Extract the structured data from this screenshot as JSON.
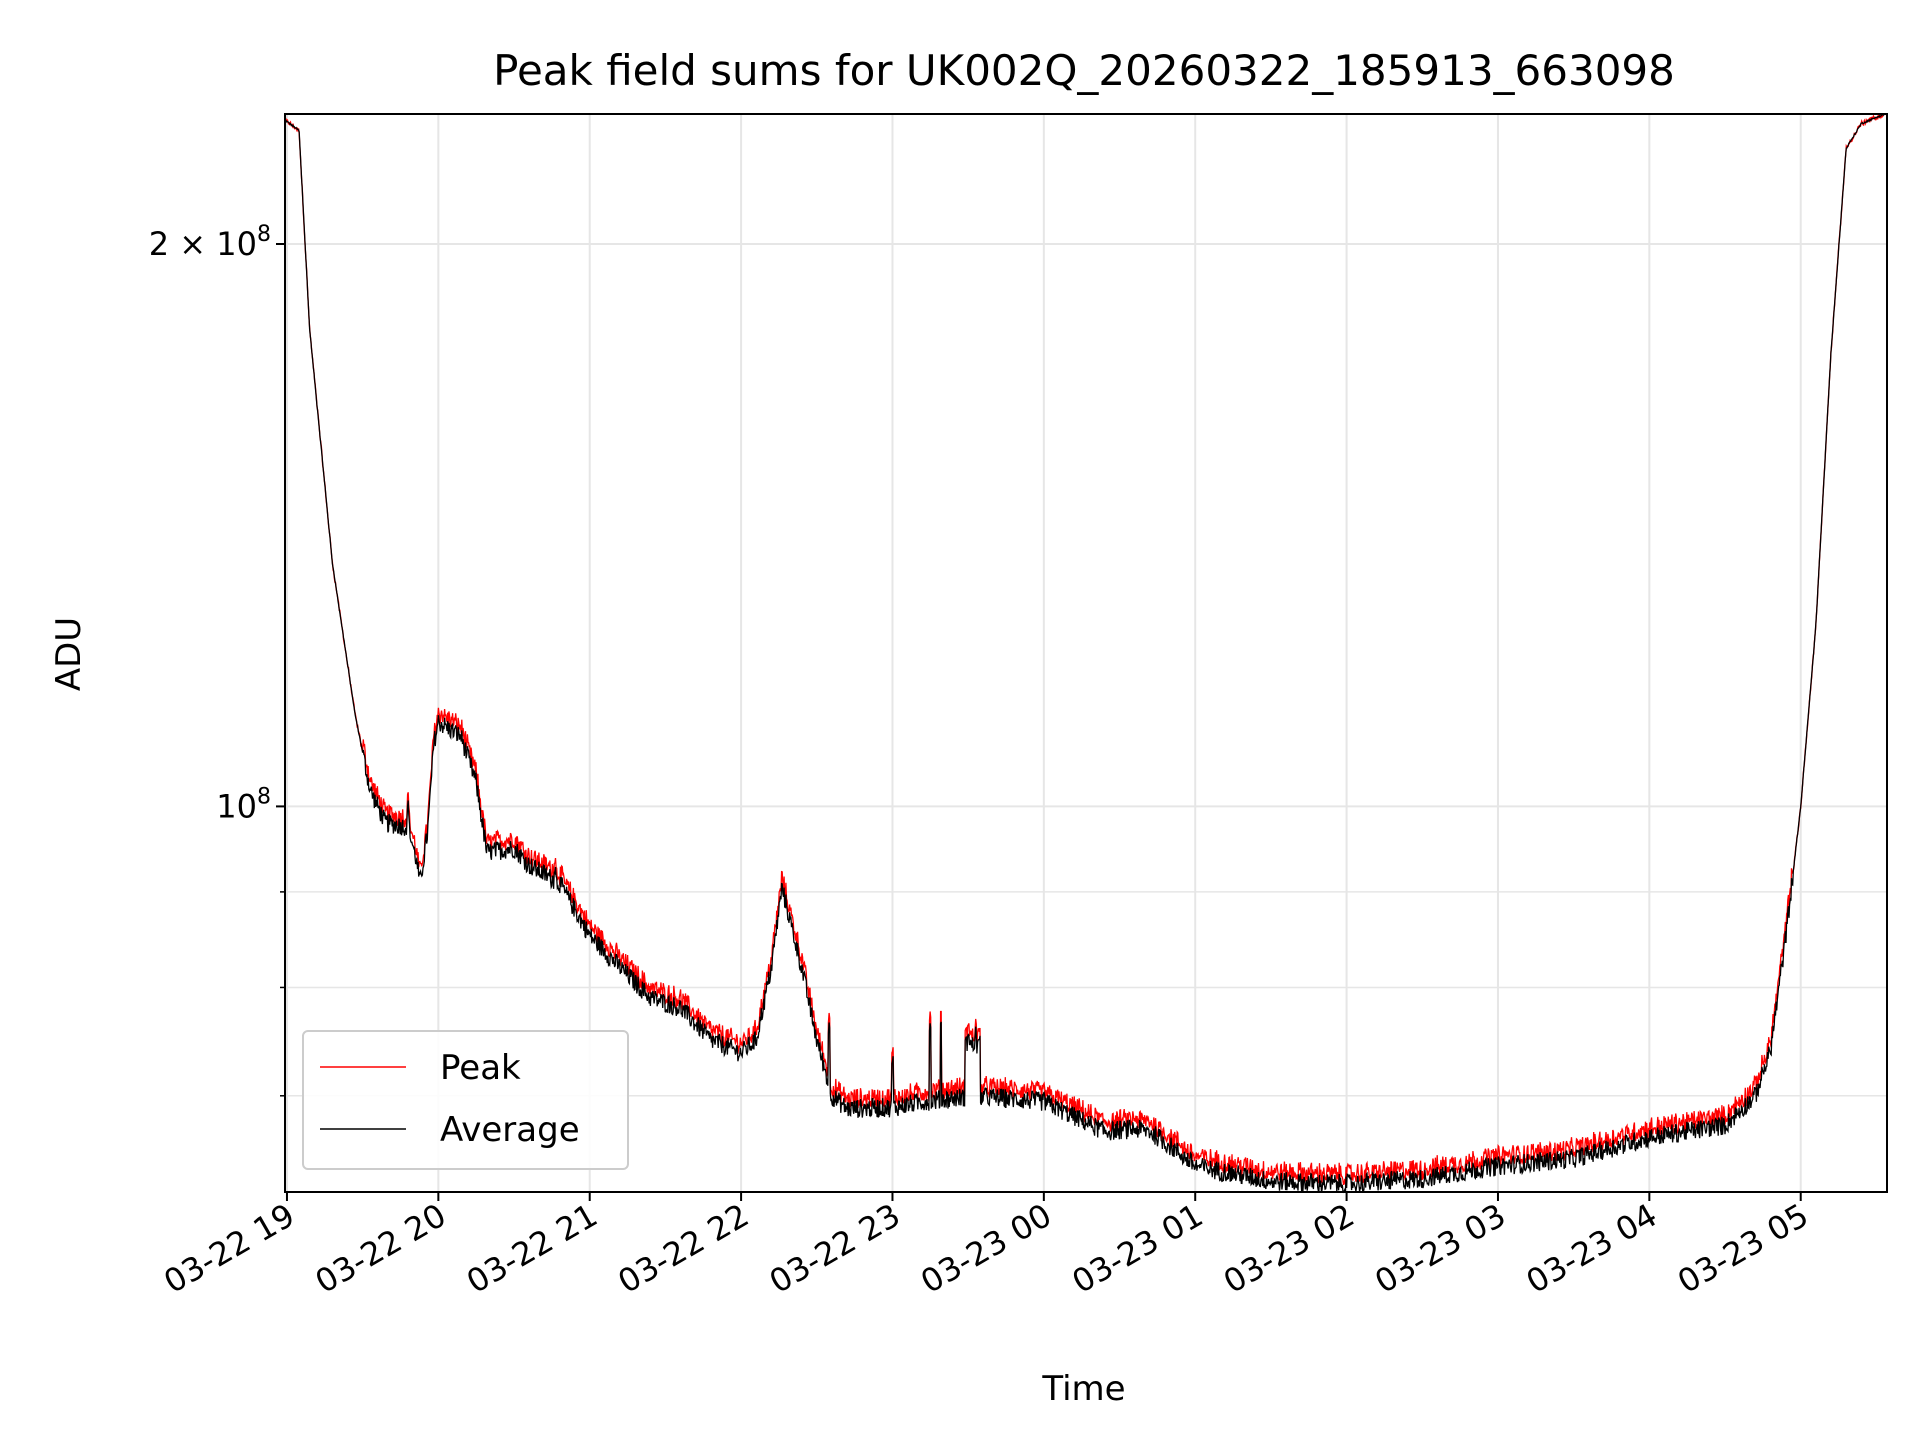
{
  "chart_data": {
    "type": "line",
    "title": "Peak field sums for UK002Q_20260322_185913_663098",
    "xlabel": "Time",
    "ylabel": "ADU",
    "yscale": "log",
    "ylim": [
      62000000,
      235000000
    ],
    "xlim_hours_from_2026-03-22_19:00": [
      -0.013,
      10.57
    ],
    "x_ticks": [
      {
        "h": 0,
        "label": "03-22 19"
      },
      {
        "h": 1,
        "label": "03-22 20"
      },
      {
        "h": 2,
        "label": "03-22 21"
      },
      {
        "h": 3,
        "label": "03-22 22"
      },
      {
        "h": 4,
        "label": "03-22 23"
      },
      {
        "h": 5,
        "label": "03-23 00"
      },
      {
        "h": 6,
        "label": "03-23 01"
      },
      {
        "h": 7,
        "label": "03-23 02"
      },
      {
        "h": 8,
        "label": "03-23 03"
      },
      {
        "h": 9,
        "label": "03-23 04"
      },
      {
        "h": 10,
        "label": "03-23 05"
      }
    ],
    "y_major_ticks": [
      {
        "v": 100000000,
        "base": "10",
        "exp": "8"
      },
      {
        "v": 200000000,
        "base": "2 × 10",
        "exp": "8"
      }
    ],
    "y_minor_ticks": [
      70000000,
      80000000,
      90000000
    ],
    "grid": true,
    "legend": {
      "placement": "lower-left",
      "entries": [
        "Peak",
        "Average"
      ]
    },
    "colors": {
      "Peak": "#ff0000",
      "Average": "#000000"
    },
    "units_note": "values in units of 1e8 ADU; x in hours after 2026-03-22 19:00",
    "average_keypoints": [
      [
        -0.013,
        2.33
      ],
      [
        0.08,
        2.3
      ],
      [
        0.15,
        1.8
      ],
      [
        0.3,
        1.35
      ],
      [
        0.45,
        1.12
      ],
      [
        0.55,
        1.02
      ],
      [
        0.65,
        0.98
      ],
      [
        0.8,
        0.975
      ],
      [
        0.85,
        0.94
      ],
      [
        0.88,
        0.91
      ],
      [
        0.93,
        0.97
      ],
      [
        0.97,
        1.08
      ],
      [
        1.0,
        1.11
      ],
      [
        1.15,
        1.09
      ],
      [
        1.25,
        1.03
      ],
      [
        1.32,
        0.945
      ],
      [
        1.5,
        0.95
      ],
      [
        1.6,
        0.93
      ],
      [
        1.8,
        0.91
      ],
      [
        2.0,
        0.853
      ],
      [
        2.2,
        0.82
      ],
      [
        2.4,
        0.79
      ],
      [
        2.6,
        0.78
      ],
      [
        2.8,
        0.75
      ],
      [
        3.0,
        0.738
      ],
      [
        3.1,
        0.75
      ],
      [
        3.2,
        0.82
      ],
      [
        3.27,
        0.905
      ],
      [
        3.4,
        0.82
      ],
      [
        3.5,
        0.75
      ],
      [
        3.6,
        0.7
      ],
      [
        3.7,
        0.689
      ],
      [
        4.0,
        0.69
      ],
      [
        4.2,
        0.695
      ],
      [
        4.55,
        0.7
      ],
      [
        5.0,
        0.695
      ],
      [
        5.4,
        0.67
      ],
      [
        5.6,
        0.672
      ],
      [
        5.7,
        0.67
      ],
      [
        5.9,
        0.652
      ],
      [
        6.0,
        0.642
      ],
      [
        6.5,
        0.63
      ],
      [
        7.0,
        0.628
      ],
      [
        7.5,
        0.632
      ],
      [
        8.0,
        0.642
      ],
      [
        8.5,
        0.648
      ],
      [
        9.0,
        0.665
      ],
      [
        9.5,
        0.675
      ],
      [
        9.7,
        0.7
      ],
      [
        9.8,
        0.74
      ],
      [
        9.9,
        0.85
      ],
      [
        10.0,
        1.0
      ],
      [
        10.1,
        1.25
      ],
      [
        10.2,
        1.75
      ],
      [
        10.3,
        2.25
      ],
      [
        10.4,
        2.32
      ],
      [
        10.57,
        2.35
      ]
    ],
    "spikes": [
      [
        0.8,
        1.0
      ],
      [
        1.77,
        0.93
      ],
      [
        3.58,
        0.76
      ],
      [
        4.0,
        0.73
      ],
      [
        4.25,
        0.76
      ],
      [
        4.32,
        0.765
      ],
      [
        4.5,
        0.76
      ],
      [
        4.55,
        0.755
      ]
    ],
    "peak_to_average_ratio": 1.012
  }
}
